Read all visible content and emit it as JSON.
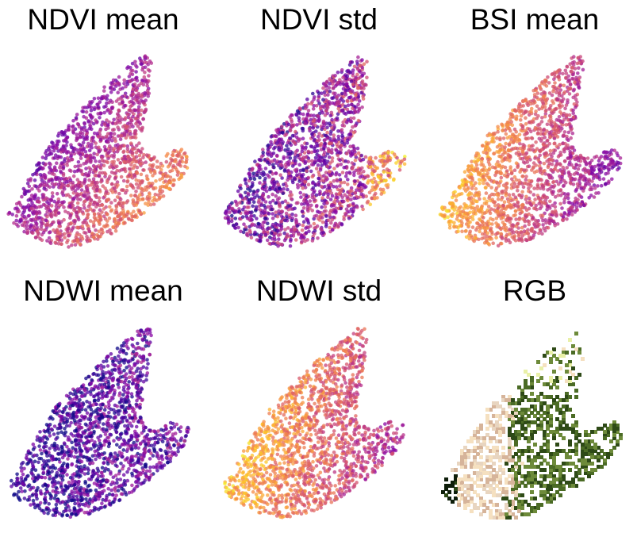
{
  "figure": {
    "panels": [
      {
        "title": "NDVI mean",
        "coloring": "plasma",
        "mode": "ndvi_mean"
      },
      {
        "title": "NDVI std",
        "coloring": "plasma",
        "mode": "ndvi_std"
      },
      {
        "title": "BSI mean",
        "coloring": "plasma",
        "mode": "bsi_mean"
      },
      {
        "title": "NDWI mean",
        "coloring": "plasma",
        "mode": "ndwi_mean"
      },
      {
        "title": "NDWI std",
        "coloring": "plasma",
        "mode": "ndwi_std"
      },
      {
        "title": "RGB",
        "coloring": "rgb",
        "mode": "rgb"
      }
    ]
  },
  "chart_data": [
    {
      "type": "scatter",
      "title": "NDVI mean",
      "axes": "hidden",
      "grid": false,
      "colormap": "plasma"
    },
    {
      "type": "scatter",
      "title": "NDVI std",
      "axes": "hidden",
      "grid": false,
      "colormap": "plasma"
    },
    {
      "type": "scatter",
      "title": "BSI mean",
      "axes": "hidden",
      "grid": false,
      "colormap": "plasma"
    },
    {
      "type": "scatter",
      "title": "NDWI mean",
      "axes": "hidden",
      "grid": false,
      "colormap": "plasma"
    },
    {
      "type": "scatter",
      "title": "NDWI std",
      "axes": "hidden",
      "grid": false,
      "colormap": "plasma"
    },
    {
      "type": "scatter",
      "title": "RGB",
      "axes": "hidden",
      "grid": false,
      "colormap": "rgb"
    }
  ],
  "colors": {
    "plasma": [
      "#0d0887",
      "#5302a3",
      "#8b0aa5",
      "#b83289",
      "#db5c68",
      "#f48849",
      "#febc2a",
      "#f0f921"
    ],
    "rgb": [
      "#0e1e0a",
      "#2e4a17",
      "#4b6b25",
      "#6d8a3a",
      "#e8d5c0",
      "#d6b49a",
      "#f5e0c0",
      "#e9f0a8"
    ]
  }
}
